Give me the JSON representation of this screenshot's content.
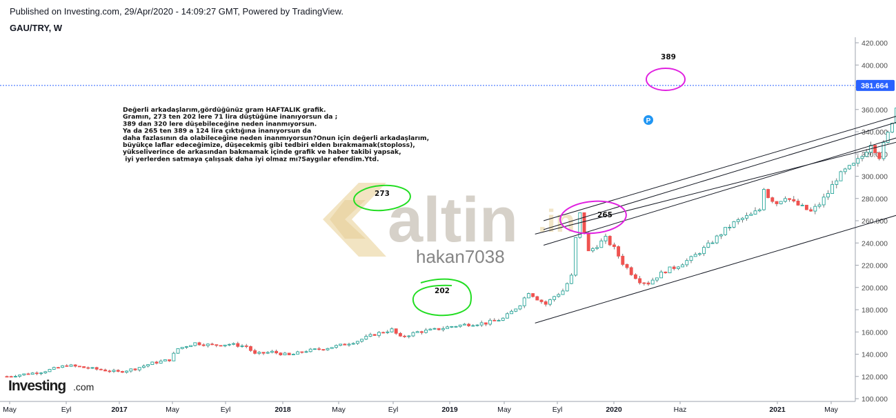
{
  "header": {
    "published": "Published on Investing.com, 29/Apr/2020 - 14:09:27 GMT, Powered by TradingView.",
    "symbol": "GAU/TRY, W"
  },
  "watermark": {
    "main": "altin",
    "suffix": ".in",
    "user": "hakan7038"
  },
  "logo": {
    "brand": "Investing",
    "suffix": ".com"
  },
  "colors": {
    "up": "#26a69a",
    "down": "#ef5350",
    "channel": "#131722",
    "green_mark": "#22dd22",
    "magenta_mark": "#e020e0",
    "price_line": "#2962ff"
  },
  "chart_data": {
    "type": "candlestick",
    "ylim": [
      98,
      428
    ],
    "y_ticks": [
      "100.000",
      "120.000",
      "140.000",
      "160.000",
      "180.000",
      "200.000",
      "220.000",
      "240.000",
      "260.000",
      "280.000",
      "300.000",
      "320.000",
      "340.000",
      "360.000",
      "380.000",
      "400.000",
      "420.000"
    ],
    "x_ticks": [
      {
        "label": "May",
        "year": false
      },
      {
        "label": "Eyl",
        "year": false
      },
      {
        "label": "2017",
        "year": true
      },
      {
        "label": "May",
        "year": false
      },
      {
        "label": "Eyl",
        "year": false
      },
      {
        "label": "2018",
        "year": true
      },
      {
        "label": "May",
        "year": false
      },
      {
        "label": "Eyl",
        "year": false
      },
      {
        "label": "2019",
        "year": true
      },
      {
        "label": "May",
        "year": false
      },
      {
        "label": "Eyl",
        "year": false
      },
      {
        "label": "2020",
        "year": true
      },
      {
        "label": "Haz",
        "year": false
      },
      {
        "label": "2021",
        "year": true
      },
      {
        "label": "May",
        "year": false
      }
    ],
    "current_price": 381.664,
    "current_price_label": "381.664",
    "price_path": [
      [
        0,
        120
      ],
      [
        8,
        124
      ],
      [
        14,
        130
      ],
      [
        20,
        127
      ],
      [
        26,
        124
      ],
      [
        30,
        127
      ],
      [
        34,
        132
      ],
      [
        38,
        135
      ],
      [
        40,
        145
      ],
      [
        44,
        150
      ],
      [
        48,
        148
      ],
      [
        52,
        149
      ],
      [
        56,
        147
      ],
      [
        58,
        140
      ],
      [
        62,
        142
      ],
      [
        66,
        139
      ],
      [
        70,
        143
      ],
      [
        74,
        145
      ],
      [
        78,
        148
      ],
      [
        82,
        152
      ],
      [
        86,
        158
      ],
      [
        90,
        162
      ],
      [
        92,
        155
      ],
      [
        96,
        160
      ],
      [
        100,
        162
      ],
      [
        104,
        165
      ],
      [
        108,
        167
      ],
      [
        112,
        168
      ],
      [
        116,
        172
      ],
      [
        118,
        178
      ],
      [
        120,
        185
      ],
      [
        122,
        196
      ],
      [
        124,
        190
      ],
      [
        126,
        185
      ],
      [
        128,
        192
      ],
      [
        130,
        197
      ],
      [
        132,
        210
      ],
      [
        133,
        244
      ],
      [
        134,
        266
      ],
      [
        135,
        250
      ],
      [
        136,
        232
      ],
      [
        138,
        238
      ],
      [
        140,
        244
      ],
      [
        142,
        235
      ],
      [
        144,
        222
      ],
      [
        146,
        213
      ],
      [
        148,
        206
      ],
      [
        150,
        204
      ],
      [
        152,
        210
      ],
      [
        154,
        215
      ],
      [
        156,
        218
      ],
      [
        158,
        222
      ],
      [
        160,
        226
      ],
      [
        162,
        232
      ],
      [
        164,
        238
      ],
      [
        166,
        245
      ],
      [
        168,
        252
      ],
      [
        170,
        258
      ],
      [
        172,
        262
      ],
      [
        174,
        265
      ],
      [
        176,
        270
      ],
      [
        177,
        290
      ],
      [
        178,
        282
      ],
      [
        180,
        276
      ],
      [
        182,
        282
      ],
      [
        184,
        276
      ],
      [
        186,
        272
      ],
      [
        188,
        268
      ],
      [
        190,
        275
      ],
      [
        192,
        285
      ],
      [
        194,
        298
      ],
      [
        196,
        305
      ],
      [
        198,
        310
      ],
      [
        200,
        318
      ],
      [
        202,
        330
      ],
      [
        204,
        318
      ],
      [
        206,
        338
      ],
      [
        208,
        362
      ],
      [
        210,
        375
      ],
      [
        211,
        382
      ]
    ],
    "channel_lines": [
      {
        "x1": 123.5,
        "y1": 168,
        "x2": 277,
        "y2": 344
      },
      {
        "x1": 123.5,
        "y1": 248,
        "x2": 277,
        "y2": 398
      },
      {
        "x1": 125.5,
        "y1": 238,
        "x2": 270,
        "y2": 407
      },
      {
        "x1": 125.5,
        "y1": 252,
        "x2": 270,
        "y2": 421
      },
      {
        "x1": 125.5,
        "y1": 260,
        "x2": 266,
        "y2": 420
      }
    ],
    "annotations": [
      {
        "label": "273",
        "x": 134.4,
        "y": 274
      },
      {
        "label": "202",
        "x": 150.3,
        "y": 216
      },
      {
        "label": "265",
        "x": 185.4,
        "y": 271
      },
      {
        "label": "389",
        "x": 211.3,
        "y": 389
      }
    ],
    "notes": [
      "Değerli arkadaşlarım,gördüğünüz gram HAFTALIK grafik.",
      "Gramın, 273 ten 202 lere 71 lira düştüğüne inanıyorsun da ;",
      "389 dan 320 lere düşebileceğine neden inanmıyorsun.",
      "Ya da 265 ten 389 a 124 lira  çıktığına inanıyorsun da",
      "daha fazlasının da olabileceğine neden inanmıyorsun?Onun için değerli arkadaşlarım,",
      "büyükçe laflar edeceğimize, düşecekmiş gibi tedbiri elden bırakmamak(stoploss),",
      "yükseliverince de arkasından bakmamak içinde grafik ve haber takibi yapsak,",
      " iyi yerlerden satmaya çalışsak daha iyi olmaz mı?Saygılar efendim.Ytd."
    ],
    "p_marker": "P"
  }
}
